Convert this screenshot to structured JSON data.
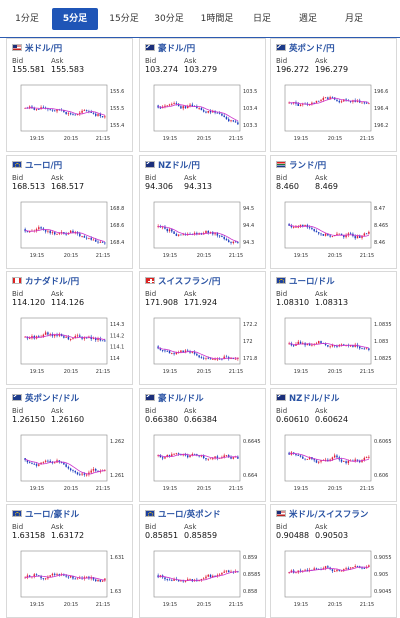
{
  "tabs": [
    {
      "label": "1分足",
      "active": false
    },
    {
      "label": "5分足",
      "active": true
    },
    {
      "label": "15分足",
      "active": false
    },
    {
      "label": "30分足",
      "active": false
    },
    {
      "label": "1時間足",
      "active": false
    },
    {
      "label": "日足",
      "active": false
    },
    {
      "label": "週足",
      "active": false
    },
    {
      "label": "月足",
      "active": false
    }
  ],
  "labels": {
    "bid": "Bid",
    "ask": "Ask"
  },
  "colors": {
    "up": "#e0203a",
    "down": "#1f3fbf",
    "ma": "#cc33cc",
    "title": "#2952a3",
    "accent": "#1f55b7"
  },
  "cards": [
    {
      "pair": "米ドル/円",
      "flag": "us-flag-icon",
      "bid": "155.581",
      "ask": "155.583",
      "x_ticks": [
        "19:15",
        "20:15",
        "21:15"
      ],
      "y_ticks": [
        "155.6",
        "155.5",
        "155.4"
      ]
    },
    {
      "pair": "豪ドル/円",
      "flag": "au-flag-icon",
      "bid": "103.274",
      "ask": "103.279",
      "x_ticks": [
        "19:15",
        "20:15",
        "21:15"
      ],
      "y_ticks": [
        "103.5",
        "103.4",
        "103.3"
      ]
    },
    {
      "pair": "英ポンド/円",
      "flag": "uk-flag-icon",
      "bid": "196.272",
      "ask": "196.279",
      "x_ticks": [
        "19:15",
        "20:15",
        "21:15"
      ],
      "y_ticks": [
        "196.6",
        "196.4",
        "196.2"
      ]
    },
    {
      "pair": "ユーロ/円",
      "flag": "eu-flag-icon",
      "bid": "168.513",
      "ask": "168.517",
      "x_ticks": [
        "19:15",
        "20:15",
        "21:15"
      ],
      "y_ticks": [
        "168.8",
        "168.6",
        "168.4"
      ]
    },
    {
      "pair": "NZドル/円",
      "flag": "nz-flag-icon",
      "bid": "94.306",
      "ask": "94.313",
      "x_ticks": [
        "19:15",
        "20:15",
        "21:15"
      ],
      "y_ticks": [
        "94.5",
        "94.4",
        "94.3"
      ]
    },
    {
      "pair": "ランド/円",
      "flag": "za-flag-icon",
      "bid": "8.460",
      "ask": "8.469",
      "x_ticks": [
        "19:15",
        "20:15",
        "21:15"
      ],
      "y_ticks": [
        "8.47",
        "8.465",
        "8.46"
      ]
    },
    {
      "pair": "カナダドル/円",
      "flag": "ca-flag-icon",
      "bid": "114.120",
      "ask": "114.126",
      "x_ticks": [
        "19:15",
        "20:15",
        "21:15"
      ],
      "y_ticks": [
        "114.3",
        "114.2",
        "114.1",
        "114"
      ]
    },
    {
      "pair": "スイスフラン/円",
      "flag": "ch-flag-icon",
      "bid": "171.908",
      "ask": "171.924",
      "x_ticks": [
        "19:15",
        "20:15",
        "21:15"
      ],
      "y_ticks": [
        "172.2",
        "172",
        "171.8"
      ]
    },
    {
      "pair": "ユーロ/ドル",
      "flag": "eu-us-flag-icon",
      "bid": "1.08310",
      "ask": "1.08313",
      "x_ticks": [
        "19:15",
        "20:15",
        "21:15"
      ],
      "y_ticks": [
        "1.0835",
        "1.083",
        "1.0825"
      ]
    },
    {
      "pair": "英ポンド/ドル",
      "flag": "uk-us-flag-icon",
      "bid": "1.26150",
      "ask": "1.26160",
      "x_ticks": [
        "19:15",
        "20:15",
        "21:15"
      ],
      "y_ticks": [
        "1.262",
        "1.261"
      ]
    },
    {
      "pair": "豪ドル/ドル",
      "flag": "au-us-flag-icon",
      "bid": "0.66380",
      "ask": "0.66384",
      "x_ticks": [
        "19:15",
        "20:15",
        "21:15"
      ],
      "y_ticks": [
        "0.6645",
        "0.664"
      ]
    },
    {
      "pair": "NZドル/ドル",
      "flag": "nz-us-flag-icon",
      "bid": "0.60610",
      "ask": "0.60624",
      "x_ticks": [
        "19:15",
        "20:15",
        "21:15"
      ],
      "y_ticks": [
        "0.6065",
        "0.606"
      ]
    },
    {
      "pair": "ユーロ/豪ドル",
      "flag": "eu-au-flag-icon",
      "bid": "1.63158",
      "ask": "1.63172",
      "x_ticks": [
        "19:15",
        "20:15",
        "21:15"
      ],
      "y_ticks": [
        "1.631",
        "1.63"
      ]
    },
    {
      "pair": "ユーロ/英ポンド",
      "flag": "eu-uk-flag-icon",
      "bid": "0.85851",
      "ask": "0.85859",
      "x_ticks": [
        "19:15",
        "20:15",
        "21:15"
      ],
      "y_ticks": [
        "0.859",
        "0.8585",
        "0.858"
      ]
    },
    {
      "pair": "米ドル/スイスフラン",
      "flag": "us-ch-flag-icon",
      "bid": "0.90488",
      "ask": "0.90503",
      "x_ticks": [
        "19:15",
        "20:15",
        "21:15"
      ],
      "y_ticks": [
        "0.9055",
        "0.905",
        "0.9045"
      ]
    }
  ]
}
